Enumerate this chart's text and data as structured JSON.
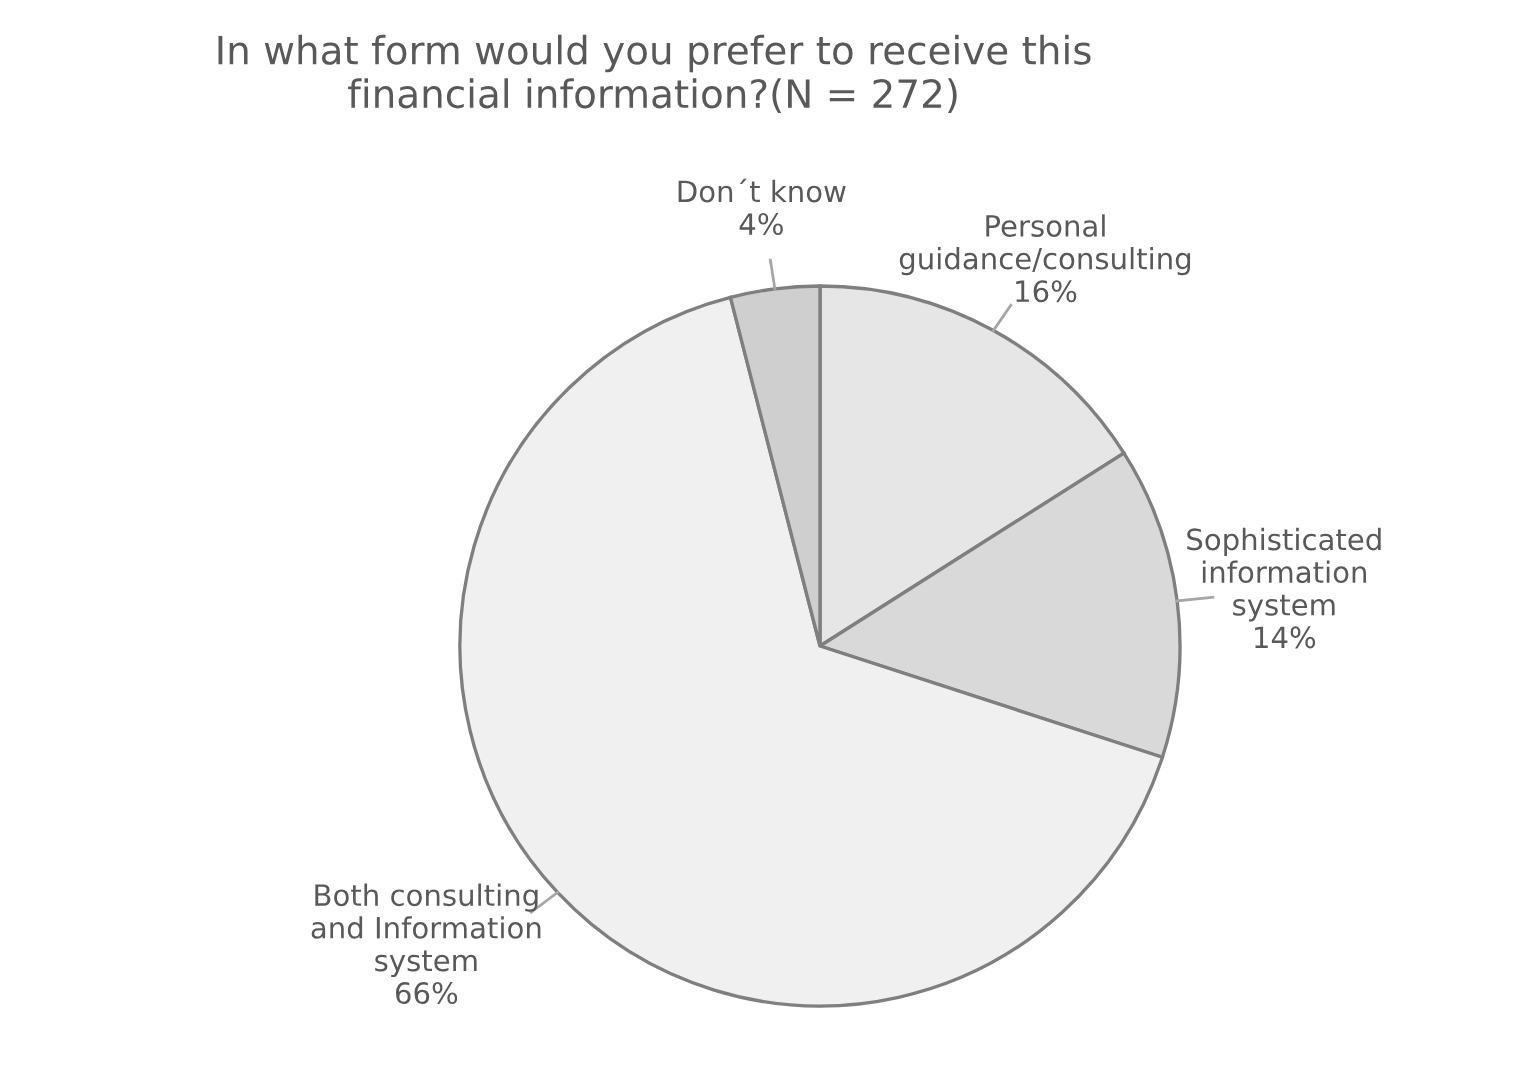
{
  "chart_data": {
    "type": "pie",
    "title": "In what form would you prefer to receive this\nfinancial information?(N = 272)",
    "categories": [
      "Personal\nguidance/consulting",
      "Sophisticated\ninformation\nsystem",
      "Both consulting\nand Information\nsystem",
      "Don´t know"
    ],
    "values": [
      16,
      14,
      66,
      4
    ],
    "value_labels": [
      "16%",
      "14%",
      "66%",
      "4%"
    ],
    "colors": [
      "#e6e6e6",
      "#d9d9d9",
      "#f0f0f0",
      "#cfcfcf"
    ]
  }
}
